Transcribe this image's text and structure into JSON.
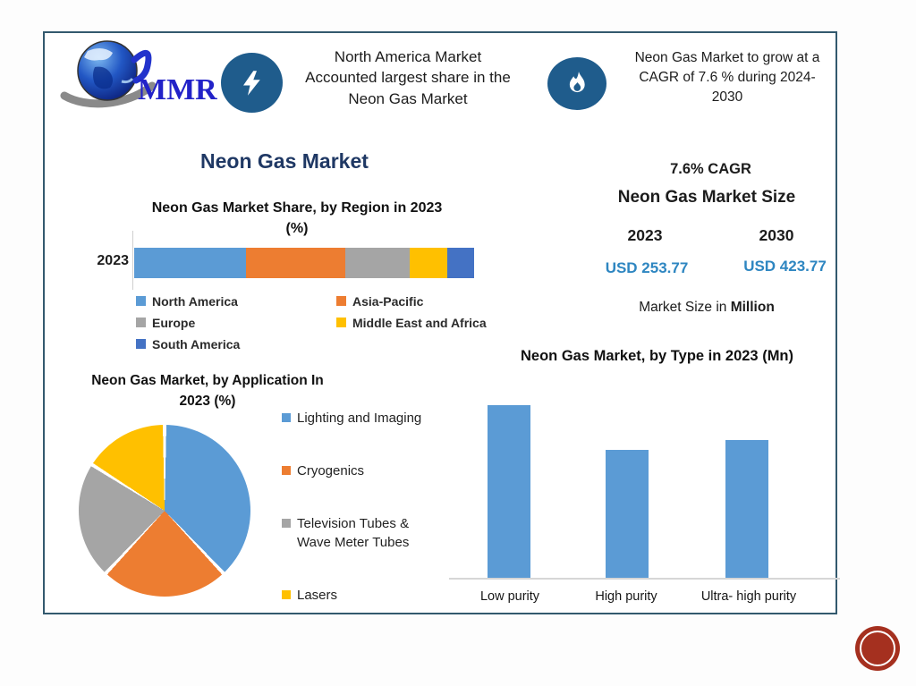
{
  "colors": {
    "border": "#33596E",
    "navy": "#1F3864",
    "icon": "#1F5C8C",
    "usd": "#2E86C1",
    "bar": "#5B9BD5",
    "badge": "#A5301F"
  },
  "logo": {
    "text": "MMR"
  },
  "header": {
    "callout1": "North America Market\nAccounted largest share in the\nNeon Gas Market",
    "callout2": "Neon Gas Market to grow at a\nCAGR of 7.6 % during 2024-\n2030"
  },
  "main_title": "Neon Gas Market",
  "stats": {
    "cagr": "7.6% CAGR",
    "market_size_title": "Neon Gas Market Size",
    "year_start": "2023",
    "year_end": "2030",
    "value_start": "USD 253.77",
    "value_end": "USD 423.77",
    "note_prefix": "Market Size in ",
    "note_bold": "Million"
  },
  "chart_data": [
    {
      "id": "region_share",
      "type": "bar",
      "orientation": "horizontal-stacked",
      "title": "Neon Gas Market Share, by Region in 2023\n(%)",
      "categories": [
        "2023"
      ],
      "series": [
        {
          "name": "North America",
          "values": [
            33
          ],
          "color": "#5B9BD5"
        },
        {
          "name": "Asia-Pacific",
          "values": [
            29
          ],
          "color": "#ED7D31"
        },
        {
          "name": "Europe",
          "values": [
            19
          ],
          "color": "#A5A5A5"
        },
        {
          "name": "Middle East and Africa",
          "values": [
            11
          ],
          "color": "#FFC000"
        },
        {
          "name": "South America",
          "values": [
            8
          ],
          "color": "#4472C4"
        }
      ],
      "xlim": [
        0,
        100
      ],
      "legend_position": "bottom"
    },
    {
      "id": "application_share",
      "type": "pie",
      "title": "Neon Gas Market, by Application In\n2023 (%)",
      "labels": [
        "Lighting and Imaging",
        "Cryogenics",
        "Television Tubes & Wave Meter Tubes",
        "Lasers"
      ],
      "values": [
        38,
        24,
        22,
        16
      ],
      "colors": [
        "#5B9BD5",
        "#ED7D31",
        "#A5A5A5",
        "#FFC000"
      ],
      "start_angle": 0,
      "legend_position": "right"
    },
    {
      "id": "type_market",
      "type": "bar",
      "title": "Neon Gas Market, by Type in 2023 (Mn)",
      "categories": [
        "Low purity",
        "High purity",
        "Ultra- high purity"
      ],
      "values": [
        100,
        74,
        80
      ],
      "ylim": [
        0,
        105
      ],
      "bar_color": "#5B9BD5",
      "grid": false
    }
  ]
}
